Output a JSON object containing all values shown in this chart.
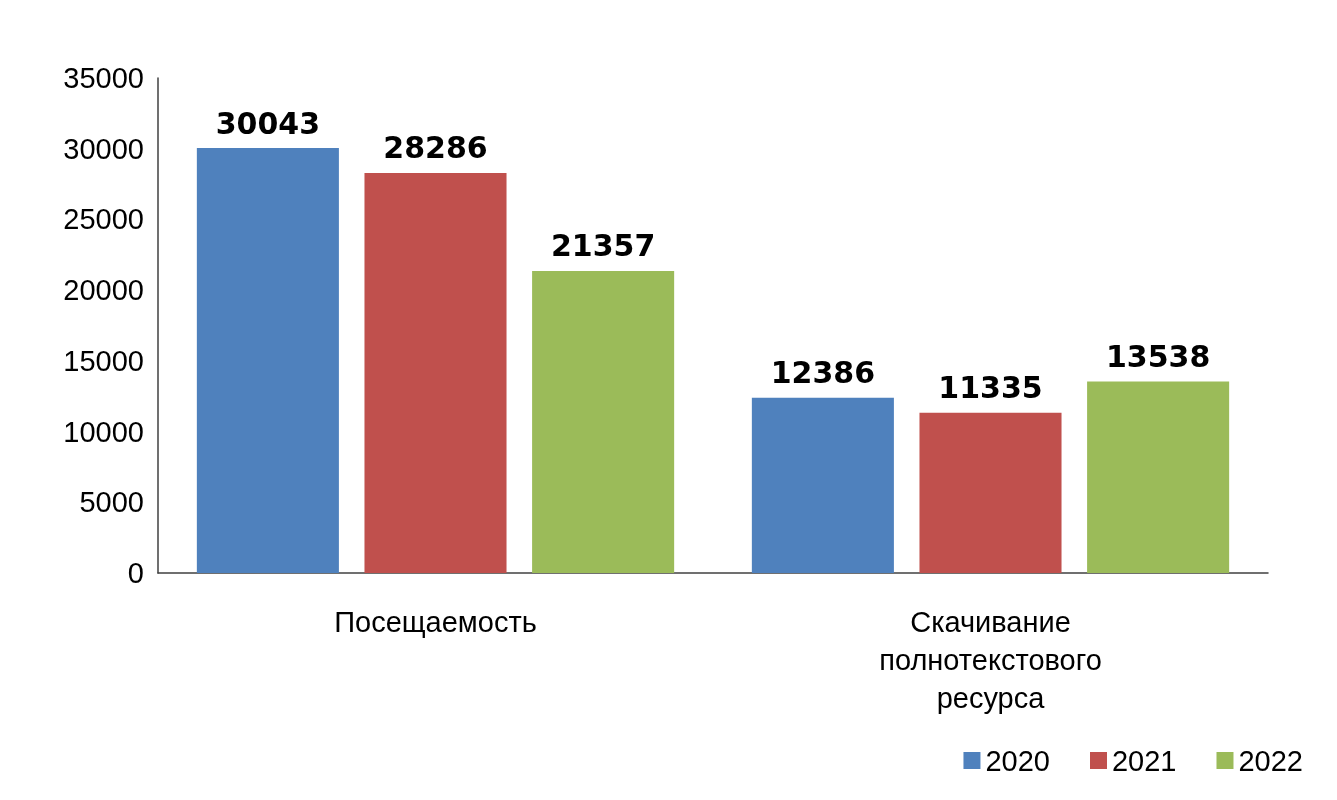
{
  "chart_data": {
    "type": "bar",
    "categories": [
      "Посещаемость",
      "Скачивание полнотекстового ресурса"
    ],
    "series": [
      {
        "name": "2020",
        "color": "#4f81bd",
        "values": [
          30043,
          12386
        ]
      },
      {
        "name": "2021",
        "color": "#c0504d",
        "values": [
          28286,
          11335
        ]
      },
      {
        "name": "2022",
        "color": "#9bbb59",
        "values": [
          21357,
          13538
        ]
      }
    ],
    "ylim": [
      0,
      35000
    ],
    "yticks": [
      0,
      5000,
      10000,
      15000,
      20000,
      25000,
      30000,
      35000
    ],
    "grid": false,
    "legend": "bottom right",
    "data_labels": true
  }
}
